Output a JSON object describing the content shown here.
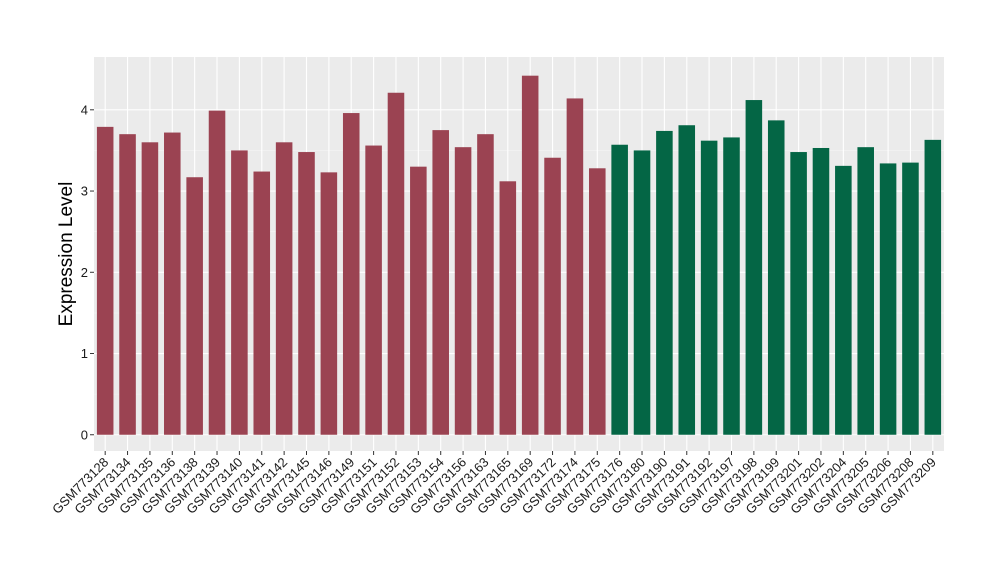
{
  "chart_data": {
    "type": "bar",
    "title": "",
    "xlabel": "",
    "ylabel": "Expression Level",
    "ylim": [
      -0.2,
      4.65
    ],
    "yticks": [
      0,
      1,
      2,
      3,
      4
    ],
    "grid": true,
    "legend": "none",
    "categories": [
      "GSM773128",
      "GSM773134",
      "GSM773135",
      "GSM773136",
      "GSM773138",
      "GSM773139",
      "GSM773140",
      "GSM773141",
      "GSM773142",
      "GSM773145",
      "GSM773146",
      "GSM773149",
      "GSM773151",
      "GSM773152",
      "GSM773153",
      "GSM773154",
      "GSM773156",
      "GSM773163",
      "GSM773165",
      "GSM773169",
      "GSM773172",
      "GSM773174",
      "GSM773175",
      "GSM773176",
      "GSM773180",
      "GSM773190",
      "GSM773191",
      "GSM773192",
      "GSM773197",
      "GSM773198",
      "GSM773199",
      "GSM773201",
      "GSM773202",
      "GSM773204",
      "GSM773205",
      "GSM773206",
      "GSM773208",
      "GSM773209"
    ],
    "values": [
      3.79,
      3.7,
      3.6,
      3.72,
      3.17,
      3.99,
      3.5,
      3.24,
      3.6,
      3.48,
      3.23,
      3.96,
      3.56,
      4.21,
      3.3,
      3.75,
      3.54,
      3.7,
      3.12,
      4.42,
      3.41,
      4.14,
      3.28,
      3.57,
      3.5,
      3.74,
      3.81,
      3.62,
      3.66,
      4.12,
      3.87,
      3.48,
      3.53,
      3.31,
      3.54,
      3.34,
      3.35,
      3.63
    ],
    "groups": [
      0,
      0,
      0,
      0,
      0,
      0,
      0,
      0,
      0,
      0,
      0,
      0,
      0,
      0,
      0,
      0,
      0,
      0,
      0,
      0,
      0,
      0,
      0,
      1,
      1,
      1,
      1,
      1,
      1,
      1,
      1,
      1,
      1,
      1,
      1,
      1,
      1,
      1
    ],
    "colors": {
      "group_0": "#9b4352",
      "group_1": "#046645",
      "panel_background": "#ebebeb",
      "grid_major": "#ffffff",
      "grid_minor": "#f5f5f5"
    }
  }
}
